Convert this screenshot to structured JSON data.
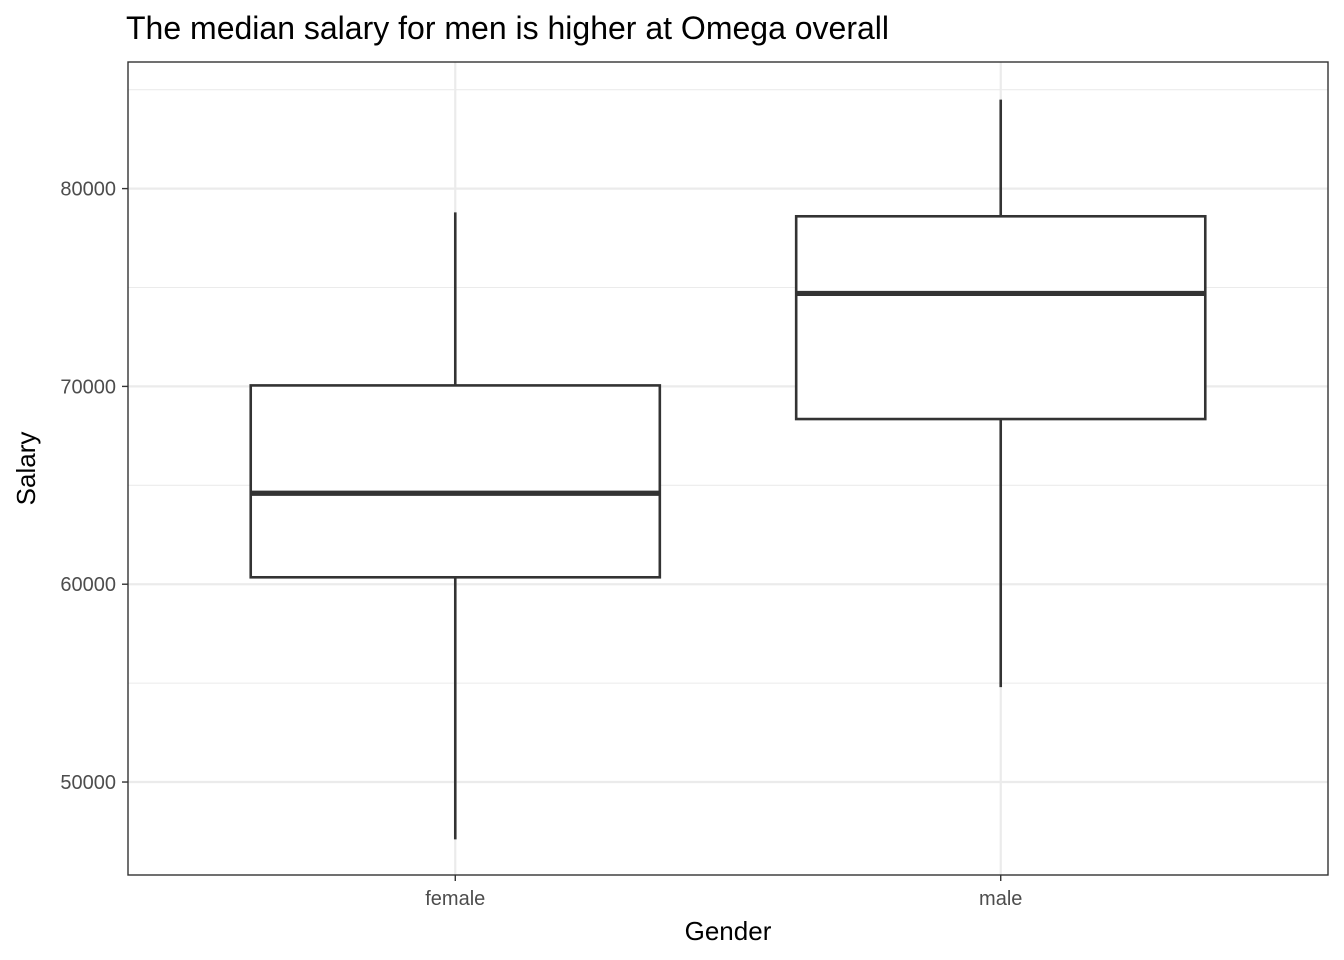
{
  "chart_data": {
    "type": "boxplot",
    "title": "The median salary for men is higher at Omega overall",
    "xlabel": "Gender",
    "ylabel": "Salary",
    "categories": [
      "female",
      "male"
    ],
    "boxes": [
      {
        "category": "female",
        "whisker_low": 47100,
        "q1": 60350,
        "median": 64600,
        "q3": 70050,
        "whisker_high": 78800
      },
      {
        "category": "male",
        "whisker_low": 54800,
        "q1": 68350,
        "median": 74700,
        "q3": 78600,
        "whisker_high": 84500
      }
    ],
    "ylim": [
      45300,
      86400
    ],
    "yticks": [
      50000,
      60000,
      70000,
      80000
    ],
    "ytick_labels": [
      "50000",
      "60000",
      "70000",
      "80000"
    ],
    "grid": true,
    "legend": "none",
    "colors": {
      "box_line": "#333333",
      "box_fill": "#ffffff",
      "grid": "#ebebeb",
      "text": "#4d4d4d"
    }
  }
}
